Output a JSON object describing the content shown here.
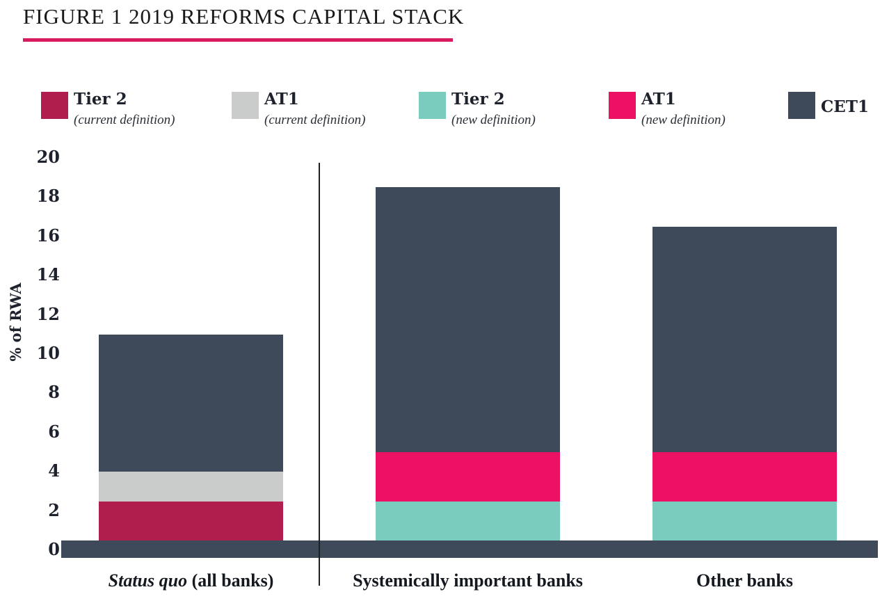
{
  "title": "FIGURE 1 2019 REFORMS CAPITAL STACK",
  "colors": {
    "accent_underline": "#d81a60",
    "axis_bar": "#3e4a59",
    "separator": "#1b2027",
    "text": "#1e222c",
    "background": "#ffffff"
  },
  "legend": {
    "items": [
      {
        "label": "Tier 2",
        "sublabel": "(current definition)",
        "color": "#b01e4e"
      },
      {
        "label": "AT1",
        "sublabel": "(current definition)",
        "color": "#c9cccb"
      },
      {
        "label": "Tier 2",
        "sublabel": "(new definition)",
        "color": "#7accbf"
      },
      {
        "label": "AT1",
        "sublabel": "(new definition)",
        "color": "#ed1164"
      },
      {
        "label": "CET1",
        "sublabel": "",
        "color": "#3e4a59"
      }
    ]
  },
  "chart_data": {
    "type": "bar",
    "variant": "stacked",
    "title": "FIGURE 1 2019 REFORMS CAPITAL STACK",
    "xlabel": "",
    "ylabel": "% of RWA",
    "ylim": [
      0,
      20
    ],
    "yticks": [
      0,
      2,
      4,
      6,
      8,
      10,
      12,
      14,
      16,
      18,
      20
    ],
    "grid": false,
    "legend_position": "top",
    "categories": [
      "Status quo (all banks)",
      "Systemically important banks",
      "Other banks"
    ],
    "category_label_parts": [
      {
        "italic": "Status quo",
        "regular": " (all banks)"
      },
      {
        "italic": "",
        "regular": "Systemically important banks"
      },
      {
        "italic": "",
        "regular": "Other banks"
      }
    ],
    "series": [
      {
        "name": "Tier 2 (current definition)",
        "color": "#b01e4e",
        "values": [
          2,
          0,
          0
        ]
      },
      {
        "name": "AT1 (current definition)",
        "color": "#c9cccb",
        "values": [
          1.5,
          0,
          0
        ]
      },
      {
        "name": "Tier 2 (new definition)",
        "color": "#7accbf",
        "values": [
          0,
          2,
          2
        ]
      },
      {
        "name": "AT1 (new definition)",
        "color": "#ed1164",
        "values": [
          0,
          2.5,
          2.5
        ]
      },
      {
        "name": "CET1",
        "color": "#3e4a59",
        "values": [
          7,
          13.5,
          11.5
        ]
      }
    ],
    "totals": [
      10.5,
      18,
      16
    ]
  }
}
